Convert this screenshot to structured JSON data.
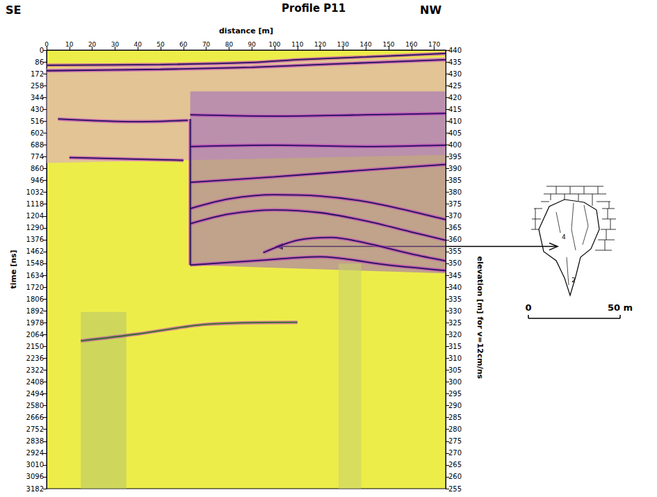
{
  "chart_data": {
    "type": "radargram",
    "title": "Profile P11",
    "corner_labels": {
      "left": "SE",
      "right": "NW"
    },
    "x_label": "distance [m]",
    "y_label": "time [ns]",
    "y2_label": "elevation [m] for v=12cm/ns",
    "xlim": [
      0,
      175
    ],
    "xticks": [
      0,
      10,
      20,
      30,
      40,
      50,
      60,
      70,
      80,
      90,
      100,
      110,
      120,
      130,
      140,
      150,
      160,
      170
    ],
    "ylim": [
      0,
      3182
    ],
    "yticks": [
      0,
      86,
      172,
      258,
      344,
      430,
      516,
      602,
      688,
      774,
      860,
      946,
      1032,
      1118,
      1204,
      1290,
      1376,
      1462,
      1548,
      1634,
      1720,
      1806,
      1892,
      1978,
      2064,
      2150,
      2236,
      2322,
      2408,
      2494,
      2580,
      2666,
      2752,
      2838,
      2924,
      3010,
      3096,
      3182
    ],
    "y2lim": [
      255,
      440
    ],
    "y2ticks": [
      255,
      260,
      265,
      270,
      275,
      280,
      285,
      290,
      295,
      300,
      305,
      310,
      315,
      320,
      325,
      330,
      335,
      340,
      345,
      350,
      355,
      360,
      365,
      370,
      375,
      380,
      385,
      390,
      395,
      400,
      405,
      410,
      415,
      420,
      425,
      430,
      435,
      440
    ],
    "zones": [
      {
        "color": "#d9a3d3",
        "points": [
          [
            0,
            130
          ],
          [
            175,
            50
          ],
          [
            175,
            760
          ],
          [
            0,
            820
          ]
        ]
      },
      {
        "color": "#9a66c0",
        "points": [
          [
            63,
            300
          ],
          [
            175,
            300
          ],
          [
            175,
            1620
          ],
          [
            63,
            1560
          ]
        ]
      },
      {
        "color": "#b4c46a",
        "points": [
          [
            15,
            1900
          ],
          [
            35,
            1900
          ],
          [
            35,
            3182
          ],
          [
            15,
            3182
          ]
        ]
      },
      {
        "color": "#c8d070",
        "points": [
          [
            128,
            1550
          ],
          [
            138,
            1550
          ],
          [
            138,
            3182
          ],
          [
            128,
            3182
          ]
        ]
      }
    ],
    "series": [
      {
        "color": "#24105e",
        "values": [
          [
            0,
            110
          ],
          [
            50,
            105
          ],
          [
            90,
            90
          ],
          [
            110,
            70
          ],
          [
            140,
            50
          ],
          [
            175,
            25
          ]
        ]
      },
      {
        "color": "#24105e",
        "values": [
          [
            0,
            150
          ],
          [
            50,
            140
          ],
          [
            90,
            125
          ],
          [
            120,
            105
          ],
          [
            175,
            70
          ]
        ]
      },
      {
        "color": "#24105e",
        "values": [
          [
            5,
            500
          ],
          [
            40,
            520
          ],
          [
            62,
            510
          ]
        ]
      },
      {
        "color": "#24105e",
        "values": [
          [
            63,
            470
          ],
          [
            100,
            480
          ],
          [
            140,
            470
          ],
          [
            175,
            460
          ]
        ]
      },
      {
        "color": "#24105e",
        "values": [
          [
            63,
            700
          ],
          [
            100,
            690
          ],
          [
            140,
            700
          ],
          [
            175,
            690
          ]
        ]
      },
      {
        "color": "#24105e",
        "values": [
          [
            10,
            780
          ],
          [
            60,
            800
          ]
        ]
      },
      {
        "color": "#24105e",
        "values": [
          [
            63,
            960
          ],
          [
            100,
            920
          ],
          [
            140,
            870
          ],
          [
            175,
            830
          ]
        ]
      },
      {
        "color": "#24105e",
        "values": [
          [
            63,
            1150
          ],
          [
            80,
            1080
          ],
          [
            100,
            1050
          ],
          [
            120,
            1060
          ],
          [
            140,
            1100
          ],
          [
            160,
            1170
          ],
          [
            175,
            1230
          ]
        ]
      },
      {
        "color": "#24105e",
        "values": [
          [
            63,
            1260
          ],
          [
            80,
            1190
          ],
          [
            100,
            1160
          ],
          [
            120,
            1180
          ],
          [
            140,
            1240
          ],
          [
            160,
            1320
          ],
          [
            175,
            1380
          ]
        ]
      },
      {
        "color": "#24105e",
        "values": [
          [
            95,
            1470
          ],
          [
            110,
            1380
          ],
          [
            125,
            1360
          ],
          [
            140,
            1400
          ],
          [
            160,
            1480
          ],
          [
            175,
            1530
          ]
        ]
      },
      {
        "color": "#24105e",
        "values": [
          [
            63,
            1560
          ],
          [
            90,
            1530
          ],
          [
            120,
            1500
          ],
          [
            150,
            1560
          ],
          [
            175,
            1600
          ]
        ]
      },
      {
        "color": "#24105e",
        "values": [
          [
            63,
            500
          ],
          [
            63,
            1560
          ]
        ]
      },
      {
        "color": "#2f6b2a",
        "values": [
          [
            15,
            2110
          ],
          [
            40,
            2060
          ],
          [
            70,
            1990
          ],
          [
            110,
            1975
          ]
        ]
      }
    ],
    "arrow": {
      "x": 100,
      "y": 1425
    },
    "sketch": {
      "labels": [
        "4",
        "2"
      ],
      "scale_labels": [
        "0",
        "50 m"
      ]
    }
  }
}
